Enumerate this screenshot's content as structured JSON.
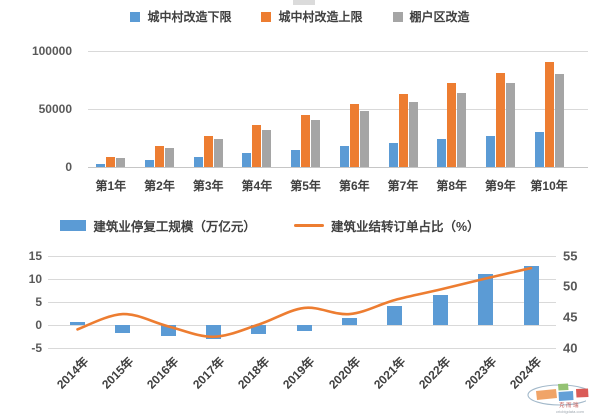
{
  "chart_data": [
    {
      "type": "bar",
      "title": "",
      "categories": [
        "第1年",
        "第2年",
        "第3年",
        "第4年",
        "第5年",
        "第6年",
        "第7年",
        "第8年",
        "第9年",
        "第10年"
      ],
      "series": [
        {
          "name": "城中村改造下限",
          "color": "#5B9BD5",
          "values": [
            3000,
            6000,
            9000,
            12000,
            15000,
            18000,
            21000,
            24000,
            27000,
            30000
          ]
        },
        {
          "name": "城中村改造上限",
          "color": "#ED7D31",
          "values": [
            9000,
            18000,
            27000,
            36000,
            45000,
            54000,
            63000,
            72000,
            81000,
            90000
          ]
        },
        {
          "name": "棚户区改造",
          "color": "#A5A5A5",
          "values": [
            8000,
            16000,
            24000,
            32000,
            40000,
            48000,
            56000,
            64000,
            72000,
            80000
          ]
        }
      ],
      "y_ticks": [
        "0",
        "50000",
        "100000"
      ],
      "y_tick_values": [
        0,
        50000,
        100000
      ],
      "ylim": [
        0,
        100000
      ],
      "grid": "horizontal",
      "legend_position": "top"
    },
    {
      "type": "bar+line",
      "title": "",
      "categories": [
        "2014年",
        "2015年",
        "2016年",
        "2017年",
        "2018年",
        "2019年",
        "2020年",
        "2021年",
        "2022年",
        "2023年",
        "2024年"
      ],
      "bar_series": {
        "name": "建筑业停复工规模（万亿元）",
        "color": "#5B9BD5",
        "axis": "left",
        "values": [
          0.7,
          -1.8,
          -2.4,
          -3.0,
          -1.9,
          -1.4,
          1.4,
          4.0,
          6.5,
          11.0,
          12.7
        ]
      },
      "line_series": {
        "name": "建筑业结转订单占比（%）",
        "color": "#ED7D31",
        "axis": "right",
        "values": [
          43,
          45.5,
          43.5,
          41.8,
          43.8,
          46.5,
          45.5,
          47.8,
          49.5,
          51.3,
          53
        ]
      },
      "left_ticks": [
        "15",
        "10",
        "5",
        "0",
        "-5"
      ],
      "left_tick_values": [
        15,
        10,
        5,
        0,
        -5
      ],
      "left_range": [
        -5,
        15
      ],
      "right_ticks": [
        "55",
        "50",
        "45",
        "40"
      ],
      "right_tick_values": [
        55,
        50,
        45,
        40
      ],
      "right_range": [
        40,
        55
      ],
      "grid": "horizontal",
      "legend_position": "top"
    }
  ],
  "watermark": {
    "line1": "克而瑞",
    "line2": "cricbigdata.com"
  },
  "colors": {
    "bar_blue": "#5B9BD5",
    "bar_orange": "#ED7D31",
    "bar_gray": "#A5A5A5",
    "gridline": "#D9D9D9",
    "tick_text": "#595959",
    "label_text": "#404040",
    "logo_orange": "#F0A060",
    "logo_green": "#8FBF6C",
    "logo_blue": "#5B9BD5",
    "logo_red": "#D9534F",
    "logo_swoosh": "#9FB6C8"
  }
}
